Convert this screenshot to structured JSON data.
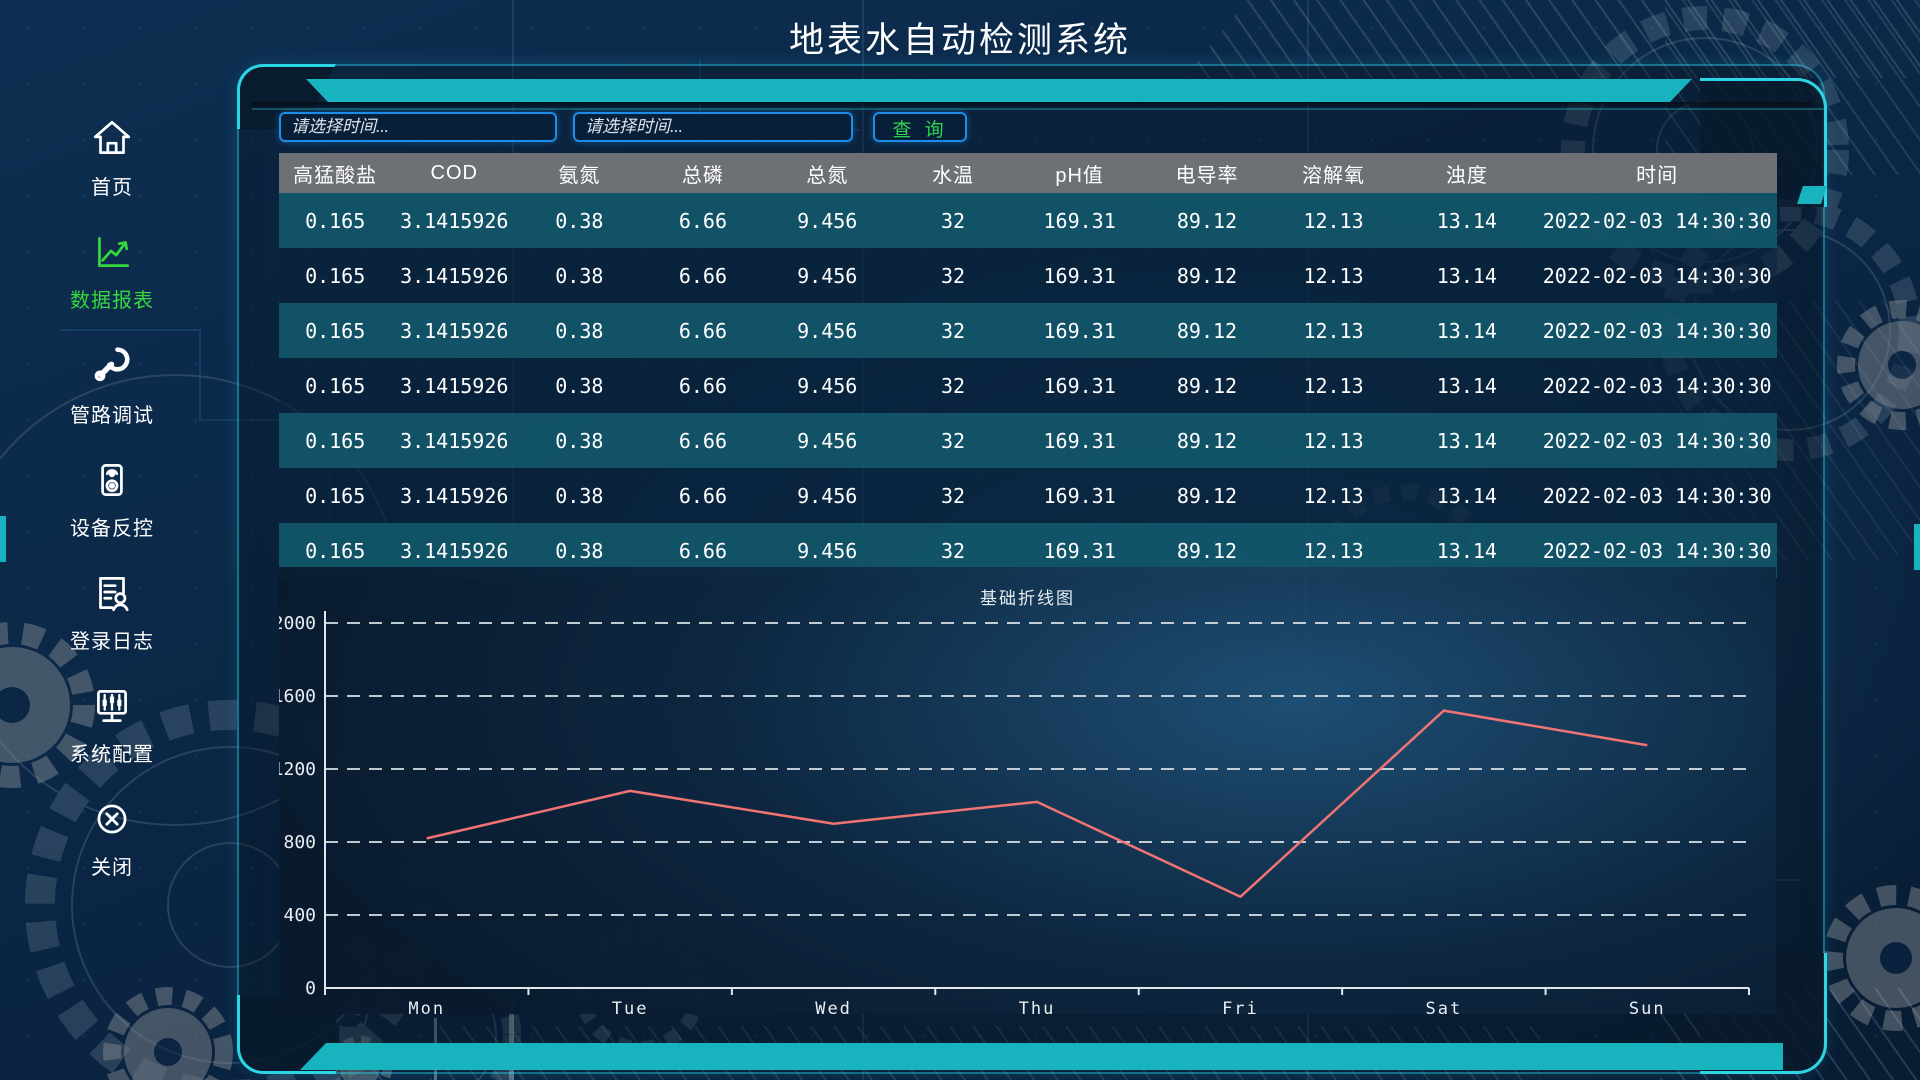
{
  "title": "地表水自动检测系统",
  "colors": {
    "accent_cyan": "#17b3bf",
    "accent_blue": "#1e8de8",
    "button_green": "#2fd34f",
    "active_nav_green": "#35d83e",
    "header_gray": "#6d7176",
    "row_teal": "#12586c",
    "line_red": "#f27373"
  },
  "sidebar": {
    "items": [
      {
        "id": "home",
        "label": "首页",
        "icon": "home-icon",
        "active": false
      },
      {
        "id": "data-report",
        "label": "数据报表",
        "icon": "line-chart-icon",
        "active": true
      },
      {
        "id": "pipeline-debug",
        "label": "管路调试",
        "icon": "wrench-icon",
        "active": false
      },
      {
        "id": "device-control",
        "label": "设备反控",
        "icon": "device-icon",
        "active": false
      },
      {
        "id": "login-log",
        "label": "登录日志",
        "icon": "log-person-icon",
        "active": false
      },
      {
        "id": "system-config",
        "label": "系统配置",
        "icon": "monitor-sliders-icon",
        "active": false
      },
      {
        "id": "close",
        "label": "关闭",
        "icon": "close-circle-icon",
        "active": false
      }
    ]
  },
  "toolbar": {
    "start_time_placeholder": "请选择时间...",
    "end_time_placeholder": "请选择时间...",
    "start_time_value": "",
    "end_time_value": "",
    "query_label": "查 询"
  },
  "table": {
    "columns": [
      "高猛酸盐",
      "COD",
      "氨氮",
      "总磷",
      "总氮",
      "水温",
      "pH值",
      "电导率",
      "溶解氧",
      "浊度",
      "时间"
    ],
    "rows": [
      [
        "0.165",
        "3.1415926",
        "0.38",
        "6.66",
        "9.456",
        "32",
        "169.31",
        "89.12",
        "12.13",
        "13.14",
        "2022-02-03 14:30:30"
      ],
      [
        "0.165",
        "3.1415926",
        "0.38",
        "6.66",
        "9.456",
        "32",
        "169.31",
        "89.12",
        "12.13",
        "13.14",
        "2022-02-03 14:30:30"
      ],
      [
        "0.165",
        "3.1415926",
        "0.38",
        "6.66",
        "9.456",
        "32",
        "169.31",
        "89.12",
        "12.13",
        "13.14",
        "2022-02-03 14:30:30"
      ],
      [
        "0.165",
        "3.1415926",
        "0.38",
        "6.66",
        "9.456",
        "32",
        "169.31",
        "89.12",
        "12.13",
        "13.14",
        "2022-02-03 14:30:30"
      ],
      [
        "0.165",
        "3.1415926",
        "0.38",
        "6.66",
        "9.456",
        "32",
        "169.31",
        "89.12",
        "12.13",
        "13.14",
        "2022-02-03 14:30:30"
      ],
      [
        "0.165",
        "3.1415926",
        "0.38",
        "6.66",
        "9.456",
        "32",
        "169.31",
        "89.12",
        "12.13",
        "13.14",
        "2022-02-03 14:30:30"
      ],
      [
        "0.165",
        "3.1415926",
        "0.38",
        "6.66",
        "9.456",
        "32",
        "169.31",
        "89.12",
        "12.13",
        "13.14",
        "2022-02-03 14:30:30"
      ]
    ]
  },
  "chart_data": {
    "type": "line",
    "title": "基础折线图",
    "categories": [
      "Mon",
      "Tue",
      "Wed",
      "Thu",
      "Fri",
      "Sat",
      "Sun"
    ],
    "values": [
      820,
      1080,
      900,
      1020,
      500,
      1520,
      1330
    ],
    "xlabel": "",
    "ylabel": "",
    "ylim": [
      0,
      2000
    ],
    "ytick_step": 400,
    "grid": "dashed-horizontal",
    "legend": "none",
    "line_color": "#f27373"
  }
}
